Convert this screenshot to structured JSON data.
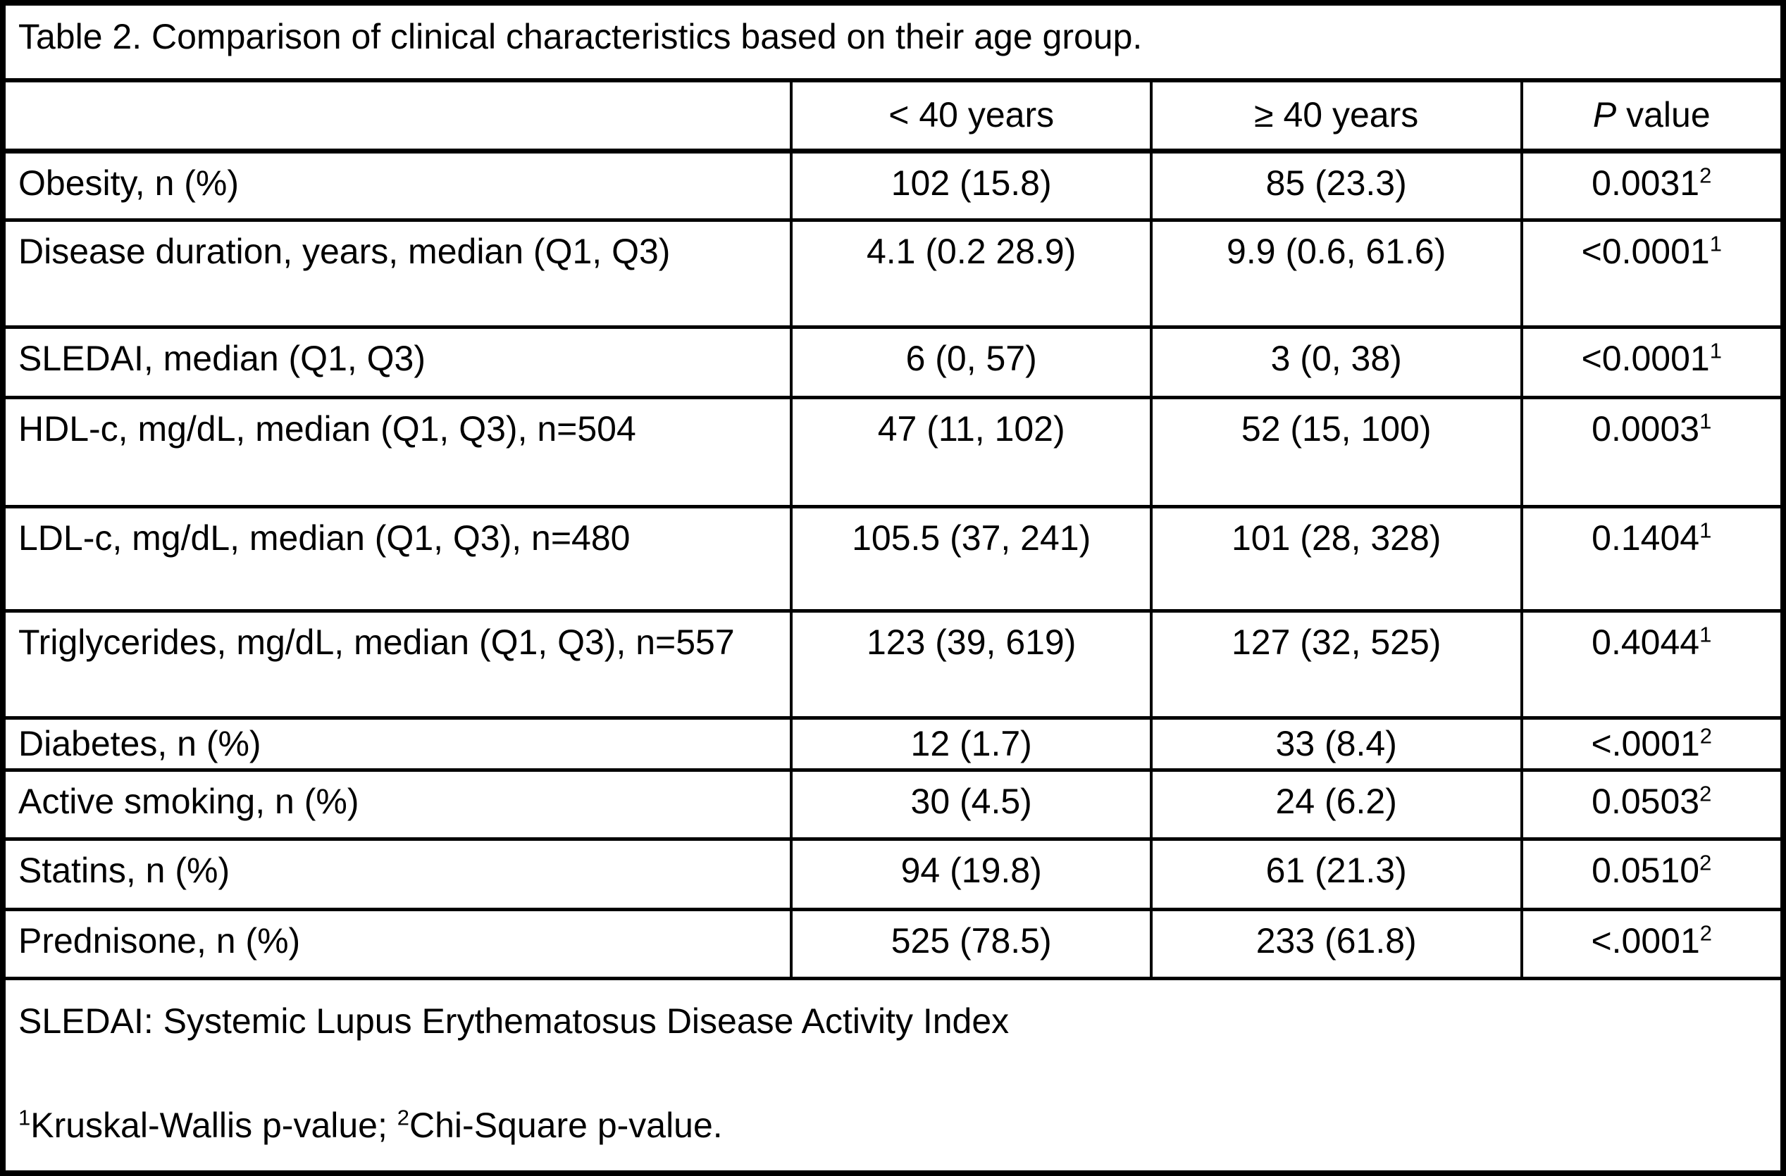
{
  "title": "Table 2. Comparison of clinical characteristics based on their age group.",
  "table": {
    "columns": {
      "lt40": "< 40 years",
      "gte40": "≥ 40 years",
      "p_italic": "P",
      "p_rest": " value"
    },
    "rows": [
      {
        "label": "Obesity, n (%)",
        "lt40": "102 (15.8)",
        "gte40": "85 (23.3)",
        "p": "0.0031",
        "p_sup": "2"
      },
      {
        "label": "Disease duration, years, median (Q1, Q3)",
        "lt40": "4.1 (0.2 28.9)",
        "gte40": "9.9 (0.6, 61.6)",
        "p": "<0.0001",
        "p_sup": "1"
      },
      {
        "label": "SLEDAI, median (Q1, Q3)",
        "lt40": "6 (0, 57)",
        "gte40": "3 (0, 38)",
        "p": "<0.0001",
        "p_sup": "1"
      },
      {
        "label": "HDL-c, mg/dL, median (Q1, Q3), n=504",
        "lt40": "47 (11, 102)",
        "gte40": "52 (15, 100)",
        "p": "0.0003",
        "p_sup": "1"
      },
      {
        "label": "LDL-c, mg/dL, median (Q1, Q3), n=480",
        "lt40": "105.5 (37, 241)",
        "gte40": "101 (28, 328)",
        "p": "0.1404",
        "p_sup": "1"
      },
      {
        "label": "Triglycerides, mg/dL, median (Q1, Q3), n=557",
        "lt40": "123 (39, 619)",
        "gte40": "127 (32, 525)",
        "p": "0.4044",
        "p_sup": "1"
      },
      {
        "label": "Diabetes, n (%)",
        "lt40": "12 (1.7)",
        "gte40": "33 (8.4)",
        "p": "<.0001",
        "p_sup": "2"
      },
      {
        "label": "Active smoking, n (%)",
        "lt40": "30 (4.5)",
        "gte40": "24 (6.2)",
        "p": "0.0503",
        "p_sup": "2"
      },
      {
        "label": "Statins, n (%)",
        "lt40": "94 (19.8)",
        "gte40": "61 (21.3)",
        "p": "0.0510",
        "p_sup": "2"
      },
      {
        "label": "Prednisone, n (%)",
        "lt40": "525 (78.5)",
        "gte40": "233 (61.8)",
        "p": "<.0001",
        "p_sup": "2"
      }
    ]
  },
  "footer": {
    "abbreviation": "SLEDAI: Systemic Lupus Erythematosus Disease Activity Index",
    "note1_sup": "1",
    "note1": "Kruskal-Wallis p-value; ",
    "note2_sup": "2",
    "note2": "Chi-Square p-value."
  }
}
